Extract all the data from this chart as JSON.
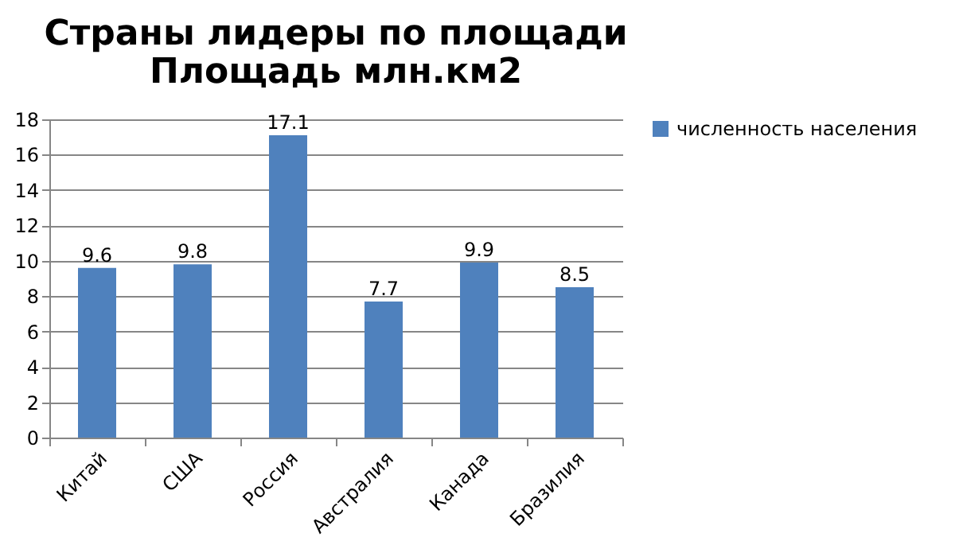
{
  "chart_data": {
    "type": "bar",
    "title": "Страны лидеры  по площади\nПлощадь млн.км2",
    "categories": [
      "Китай",
      "США",
      "Россия",
      "Австралия",
      "Канада",
      "Бразилия"
    ],
    "series": [
      {
        "name": "численность населения",
        "color": "#4f81bd",
        "values": [
          9.6,
          9.8,
          17.1,
          7.7,
          9.9,
          8.5
        ]
      }
    ],
    "ylim": [
      0,
      18
    ],
    "yticks": [
      0,
      2,
      4,
      6,
      8,
      10,
      12,
      14,
      16,
      18
    ],
    "grid": "y",
    "legend": "right",
    "data_labels": true
  }
}
